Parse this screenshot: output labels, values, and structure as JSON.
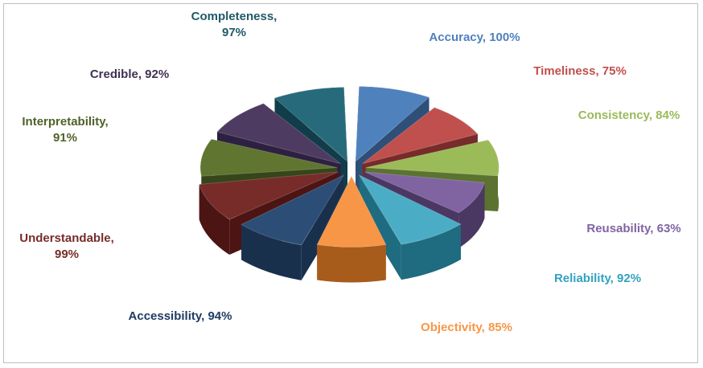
{
  "chart_data": {
    "type": "pie",
    "style": "3D exploded pie (radius varies per slice)",
    "title": "",
    "categories": [
      "Accuracy",
      "Timeliness",
      "Consistency",
      "Reusability",
      "Reliability",
      "Objectivity",
      "Accessibility",
      "Understandable",
      "Interpretability",
      "Credible",
      "Completeness"
    ],
    "values": [
      100,
      75,
      84,
      63,
      92,
      85,
      94,
      99,
      91,
      92,
      97
    ],
    "labels": [
      {
        "name": "Accuracy",
        "value_text": "100%",
        "lines": [
          "Accuracy, 100%"
        ]
      },
      {
        "name": "Timeliness",
        "value_text": "75%",
        "lines": [
          "Timeliness, 75%"
        ]
      },
      {
        "name": "Consistency",
        "value_text": "84%",
        "lines": [
          "Consistency, 84%"
        ]
      },
      {
        "name": "Reusability",
        "value_text": "63%",
        "lines": [
          "Reusability, 63%"
        ]
      },
      {
        "name": "Reliability",
        "value_text": "92%",
        "lines": [
          "Reliability, 92%"
        ]
      },
      {
        "name": "Objectivity",
        "value_text": "85%",
        "lines": [
          "Objectivity, 85%"
        ]
      },
      {
        "name": "Accessibility",
        "value_text": "94%",
        "lines": [
          "Accessibility, 94%"
        ]
      },
      {
        "name": "Understandable",
        "value_text": "99%",
        "lines": [
          "Understandable,",
          "99%"
        ]
      },
      {
        "name": "Interpretability",
        "value_text": "91%",
        "lines": [
          "Interpretability,",
          "91%"
        ]
      },
      {
        "name": "Credible",
        "value_text": "92%",
        "lines": [
          "Credible, 92%"
        ]
      },
      {
        "name": "Completeness",
        "value_text": "97%",
        "lines": [
          "Completeness,",
          "97%"
        ]
      }
    ],
    "colors": {
      "Accuracy": {
        "top": "#4f81bd",
        "side": "#2f4f78",
        "label": "#4f81bd"
      },
      "Timeliness": {
        "top": "#c0504d",
        "side": "#772b2a",
        "label": "#c0504d"
      },
      "Consistency": {
        "top": "#9bbb59",
        "side": "#5b7230",
        "label": "#9bbb59"
      },
      "Reusability": {
        "top": "#8064a2",
        "side": "#4a3762",
        "label": "#8064a2"
      },
      "Reliability": {
        "top": "#4bacc6",
        "side": "#1f6b7f",
        "label": "#31a2c0"
      },
      "Objectivity": {
        "top": "#f79646",
        "side": "#a85c1c",
        "label": "#f79646"
      },
      "Accessibility": {
        "top": "#2c4d75",
        "side": "#19304d",
        "label": "#1f3b62"
      },
      "Understandable": {
        "top": "#772c2a",
        "side": "#4c1514",
        "label": "#772c2a"
      },
      "Interpretability": {
        "top": "#5f7530",
        "side": "#36451a",
        "label": "#4f6228"
      },
      "Credible": {
        "top": "#4d3b62",
        "side": "#2d2040",
        "label": "#403151"
      },
      "Completeness": {
        "top": "#276a7c",
        "side": "#103d49",
        "label": "#215968"
      }
    },
    "legend": "none (category labels placed beside slices)"
  }
}
